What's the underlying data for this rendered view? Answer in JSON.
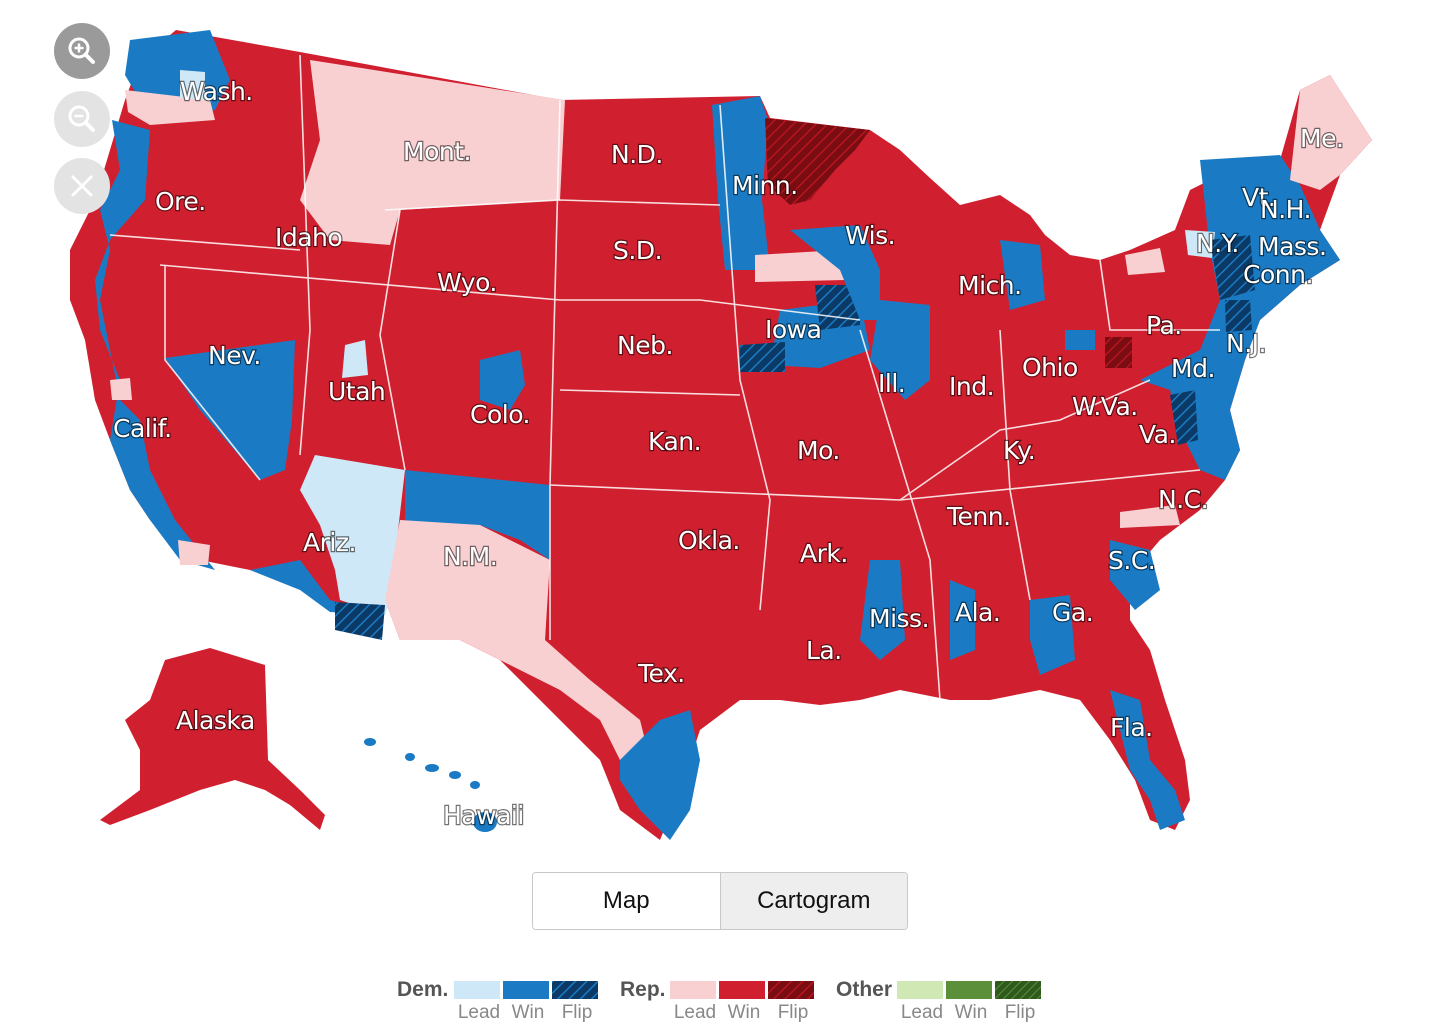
{
  "colors": {
    "dem_lead": "#cfe8f8",
    "dem_win": "#1a7bc4",
    "dem_flip": "#0c3a66",
    "rep_lead": "#f8d0d2",
    "rep_win": "#d01f2e",
    "rep_flip": "#7a0d12",
    "other_lead": "#cfe8b4",
    "other_win": "#5c8f3a",
    "other_flip": "#2f5a1e"
  },
  "icons": {
    "zoom_in": "zoom-in-icon",
    "zoom_out": "zoom-out-icon",
    "reset": "close-icon"
  },
  "map": {
    "labels": {
      "wash": "Wash.",
      "ore": "Ore.",
      "calif": "Calif.",
      "idaho": "Idaho",
      "nev": "Nev.",
      "mont": "Mont.",
      "wyo": "Wyo.",
      "utah": "Utah",
      "colo": "Colo.",
      "ariz": "Ariz.",
      "nm": "N.M.",
      "nd": "N.D.",
      "sd": "S.D.",
      "neb": "Neb.",
      "kan": "Kan.",
      "okla": "Okla.",
      "tex": "Tex.",
      "minn": "Minn.",
      "iowa": "Iowa",
      "mo": "Mo.",
      "ark": "Ark.",
      "la": "La.",
      "wis": "Wis.",
      "ill": "Ill.",
      "mich": "Mich.",
      "ind": "Ind.",
      "ohio": "Ohio",
      "ky": "Ky.",
      "tenn": "Tenn.",
      "miss": "Miss.",
      "ala": "Ala.",
      "ga": "Ga.",
      "fla": "Fla.",
      "sc": "S.C.",
      "nc": "N.C.",
      "va": "Va.",
      "wva": "W.Va.",
      "pa": "Pa.",
      "ny": "N.Y.",
      "md": "Md.",
      "nj": "N.J.",
      "vt": "Vt.",
      "nh": "N.H.",
      "mass": "Mass.",
      "conn": "Conn.",
      "me": "Me.",
      "alaska": "Alaska",
      "hawaii": "Hawaii"
    }
  },
  "toggle": {
    "map": "Map",
    "cartogram": "Cartogram"
  },
  "legend": {
    "dem": {
      "title": "Dem.",
      "lead": "Lead",
      "win": "Win",
      "flip": "Flip"
    },
    "rep": {
      "title": "Rep.",
      "lead": "Lead",
      "win": "Win",
      "flip": "Flip"
    },
    "other": {
      "title": "Other",
      "lead": "Lead",
      "win": "Win",
      "flip": "Flip"
    }
  }
}
